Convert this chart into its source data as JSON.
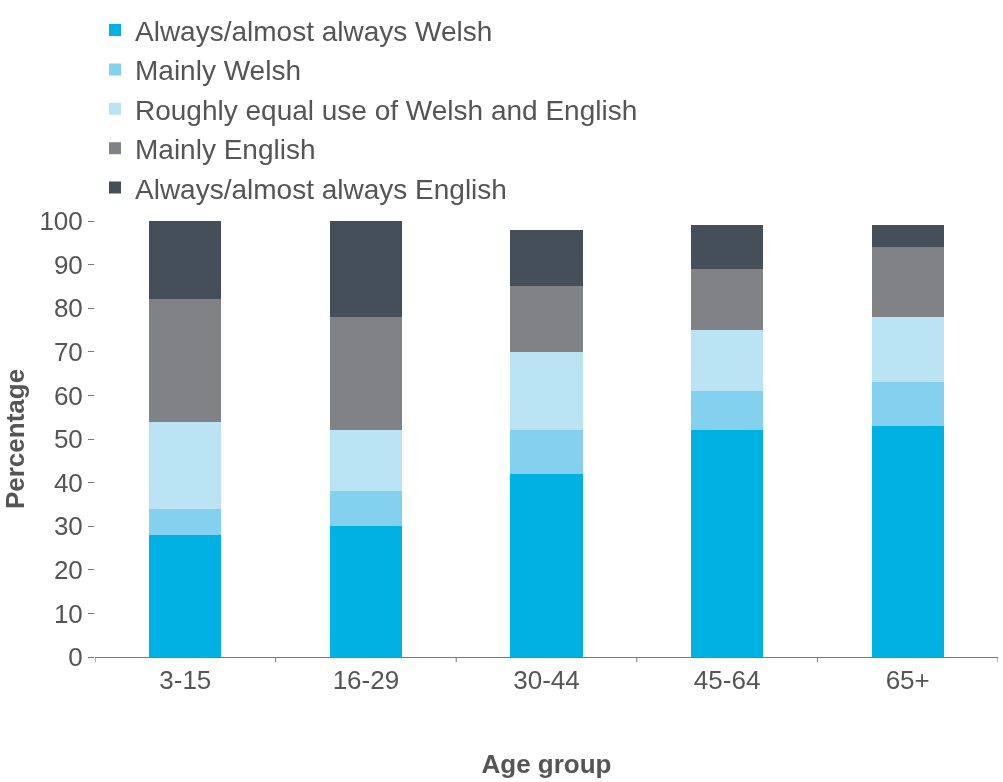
{
  "chart_data": {
    "type": "bar",
    "stacked": true,
    "xlabel": "Age group",
    "ylabel": "Percentage",
    "categories": [
      "3-15",
      "16-29",
      "30-44",
      "45-64",
      "65+"
    ],
    "series": [
      {
        "name": "Always/almost always Welsh",
        "color": "#00b2e3",
        "values": [
          28,
          30,
          42,
          52,
          53
        ]
      },
      {
        "name": "Mainly Welsh",
        "color": "#84d1ef",
        "values": [
          6,
          8,
          10,
          9,
          10
        ]
      },
      {
        "name": "Roughly equal use of Welsh and English",
        "color": "#bae3f3",
        "values": [
          20,
          14,
          18,
          14,
          15
        ]
      },
      {
        "name": "Mainly English",
        "color": "#808285",
        "values": [
          28,
          26,
          15,
          14,
          16
        ]
      },
      {
        "name": "Always/almost always English",
        "color": "#454f59",
        "values": [
          18,
          22,
          13,
          10,
          5
        ]
      }
    ],
    "ylim": [
      0,
      100
    ],
    "yticks": [
      0,
      10,
      20,
      30,
      40,
      50,
      60,
      70,
      80,
      90,
      100
    ],
    "legend": "top left"
  }
}
